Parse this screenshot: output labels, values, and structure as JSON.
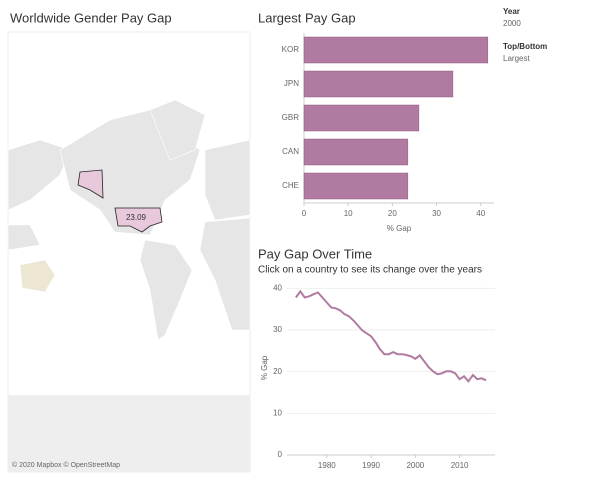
{
  "filters": [
    {
      "label": "Year",
      "value": "2000"
    },
    {
      "label": "Top/Bottom",
      "value": "Largest"
    }
  ],
  "chart_data": [
    {
      "type": "map",
      "title": "Worldwide Gender Pay Gap",
      "values": [
        23.09
      ],
      "color": "#e8c9dc",
      "attribution": "© 2020 Mapbox © OpenStreetMap"
    },
    {
      "type": "hbar",
      "title": "Largest Pay Gap",
      "x_label": "% Gap",
      "categories": [
        "KOR",
        "JPN",
        "GBR",
        "CAN",
        "CHE"
      ],
      "values": [
        41.6,
        33.7,
        26.0,
        23.5,
        23.5
      ],
      "color": "#b07aa1",
      "xlim": [
        0,
        43
      ],
      "xticks": [
        0,
        10,
        20,
        30,
        40
      ]
    },
    {
      "type": "line",
      "title": "Pay Gap Over Time",
      "subtitle": "Click on a country to see its change over the years",
      "y_label": "% Gap",
      "x": [
        1973,
        1974,
        1975,
        1976,
        1977,
        1978,
        1979,
        1980,
        1981,
        1982,
        1983,
        1984,
        1985,
        1986,
        1987,
        1988,
        1989,
        1990,
        1991,
        1992,
        1993,
        1994,
        1995,
        1996,
        1997,
        1998,
        1999,
        2000,
        2001,
        2002,
        2003,
        2004,
        2005,
        2006,
        2007,
        2008,
        2009,
        2010,
        2011,
        2012,
        2013,
        2014,
        2015,
        2016
      ],
      "values": [
        37.8,
        39.3,
        37.8,
        38.1,
        38.6,
        39.0,
        37.8,
        36.6,
        35.4,
        35.2,
        34.7,
        33.8,
        33.3,
        32.3,
        31.1,
        29.9,
        29.2,
        28.5,
        27.1,
        25.4,
        24.2,
        24.2,
        24.7,
        24.2,
        24.2,
        24.0,
        23.7,
        23.1,
        23.9,
        22.5,
        21.1,
        20.1,
        19.4,
        19.6,
        20.1,
        20.1,
        19.6,
        18.2,
        18.9,
        17.7,
        19.2,
        18.2,
        18.4,
        17.9
      ],
      "color": "#b07aa1",
      "xlim": [
        1971,
        2018
      ],
      "ylim": [
        0,
        42
      ],
      "xticks": [
        1980,
        1990,
        2000,
        2010
      ],
      "yticks": [
        0,
        10,
        20,
        30,
        40
      ],
      "grid": true
    }
  ]
}
